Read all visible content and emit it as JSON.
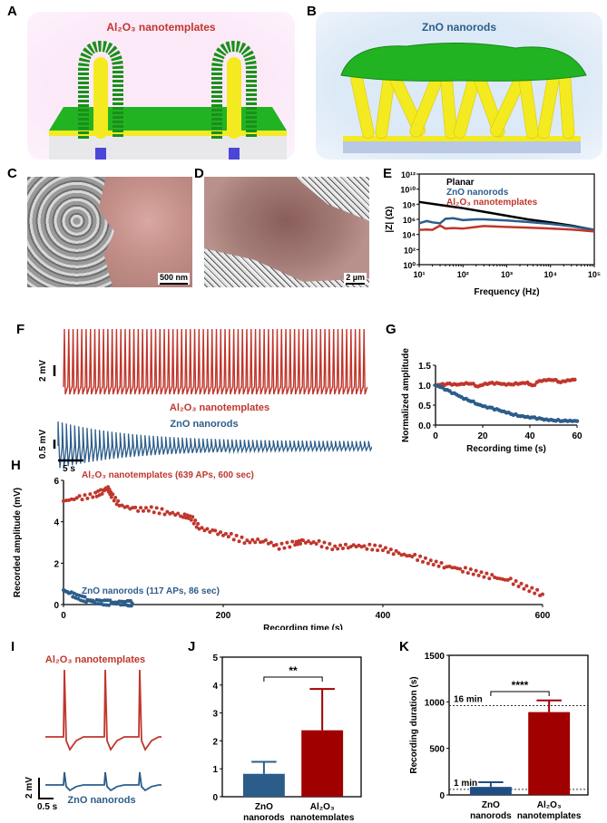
{
  "panels": {
    "A": {
      "letter": "A",
      "title": "Al₂O₃ nanotemplates"
    },
    "B": {
      "letter": "B",
      "title": "ZnO nanorods"
    },
    "C": {
      "letter": "C",
      "scale": "500 nm"
    },
    "D": {
      "letter": "D",
      "scale": "2 µm"
    },
    "E": {
      "letter": "E"
    },
    "F": {
      "letter": "F",
      "top_label": "Al₂O₃ nanotemplates",
      "bottom_label": "ZnO nanorods",
      "top_scale": "2 mV",
      "bottom_scale": "0.5 mV",
      "time_scale": "5 s"
    },
    "G": {
      "letter": "G"
    },
    "H": {
      "letter": "H"
    },
    "I": {
      "letter": "I",
      "top_label": "Al₂O₃ nanotemplates",
      "bottom_label": "ZnO nanorods",
      "v_scale": "2 mV",
      "t_scale": "0.5 s"
    },
    "J": {
      "letter": "J"
    },
    "K": {
      "letter": "K"
    }
  },
  "colors": {
    "red": "#c0362c",
    "blue": "#2c5d8a",
    "black": "#000000",
    "darkred": "#a00000",
    "navy": "#1f4e84"
  },
  "chart_data": [
    {
      "id": "E",
      "type": "line",
      "xscale": "log",
      "yscale": "log",
      "xlabel": "Frequency (Hz)",
      "ylabel": "|Z| (Ω)",
      "xlim": [
        10,
        100000
      ],
      "ylim": [
        1,
        1000000000000
      ],
      "xticks": [
        "10¹",
        "10²",
        "10³",
        "10⁴",
        "10⁵"
      ],
      "yticks": [
        "10⁰",
        "10²",
        "10⁴",
        "10⁶",
        "10⁸",
        "10¹⁰",
        "10¹²"
      ],
      "legend": [
        "Planar",
        "ZnO nanorods",
        "Al₂O₃ nanotemplates"
      ],
      "legend_position": "top-left",
      "series": [
        {
          "name": "Planar",
          "color": "#000000",
          "x": [
            10,
            30,
            100,
            300,
            1000,
            3000,
            10000,
            30000,
            100000
          ],
          "y": [
            200000000,
            80000000,
            30000000,
            10000000,
            3000000,
            1000000,
            400000,
            150000,
            40000
          ]
        },
        {
          "name": "ZnO nanorods",
          "color": "#2c5d8a",
          "x": [
            10,
            15,
            20,
            30,
            40,
            60,
            100,
            200,
            300,
            1000,
            3000,
            10000,
            30000,
            100000
          ],
          "y": [
            300000,
            600000,
            400000,
            300000,
            1200000,
            1400000,
            800000,
            1000000,
            1000000,
            700000,
            450000,
            250000,
            120000,
            40000
          ]
        },
        {
          "name": "Al₂O₃ nanotemplates",
          "color": "#c0362c",
          "x": [
            10,
            15,
            20,
            30,
            40,
            60,
            100,
            200,
            300,
            1000,
            3000,
            10000,
            30000,
            100000
          ],
          "y": [
            40000,
            45000,
            40000,
            150000,
            60000,
            70000,
            60000,
            100000,
            130000,
            100000,
            80000,
            60000,
            45000,
            25000
          ]
        }
      ]
    },
    {
      "id": "G",
      "type": "scatter",
      "xlabel": "Recording time (s)",
      "ylabel": "Normalized amplitude",
      "xlim": [
        0,
        60
      ],
      "ylim": [
        0,
        1.5
      ],
      "xticks": [
        "0",
        "20",
        "40",
        "60"
      ],
      "yticks": [
        "0.0",
        "0.5",
        "1.0",
        "1.5"
      ],
      "series": [
        {
          "name": "Al₂O₃ nanotemplates",
          "color": "#c0362c",
          "x": [
            0,
            3,
            6,
            9,
            12,
            15,
            18,
            21,
            24,
            27,
            30,
            33,
            36,
            39,
            41,
            44,
            47,
            50,
            53,
            56,
            59
          ],
          "y": [
            1.0,
            1.02,
            1.03,
            1.01,
            1.04,
            1.05,
            0.97,
            1.03,
            1.05,
            1.04,
            1.02,
            1.03,
            1.05,
            1.06,
            0.98,
            1.1,
            1.13,
            1.14,
            1.08,
            1.12,
            1.14
          ]
        },
        {
          "name": "ZnO nanorods",
          "color": "#2c5d8a",
          "x": [
            0,
            3,
            6,
            9,
            12,
            15,
            18,
            21,
            24,
            27,
            30,
            33,
            36,
            39,
            42,
            45,
            48,
            51,
            54,
            57,
            60
          ],
          "y": [
            1.0,
            0.93,
            0.84,
            0.76,
            0.67,
            0.61,
            0.52,
            0.46,
            0.42,
            0.37,
            0.32,
            0.27,
            0.23,
            0.2,
            0.18,
            0.15,
            0.13,
            0.12,
            0.11,
            0.105,
            0.1
          ]
        }
      ]
    },
    {
      "id": "H",
      "type": "scatter",
      "xlabel": "Recording time (s)",
      "ylabel": "Recorded amplitude (mV)",
      "xlim": [
        0,
        600
      ],
      "ylim": [
        0,
        6
      ],
      "xticks": [
        "0",
        "200",
        "400",
        "600"
      ],
      "yticks": [
        "0",
        "2",
        "4",
        "6"
      ],
      "annotations": [
        "Al₂O₃ nanotemplates (639 APs, 600 sec)",
        "ZnO nanorods (117 APs,  86 sec)"
      ],
      "series": [
        {
          "name": "Al₂O₃ nanotemplates",
          "color": "#c0362c",
          "x": [
            0,
            20,
            40,
            50,
            55,
            60,
            70,
            90,
            110,
            130,
            150,
            160,
            170,
            190,
            210,
            230,
            250,
            270,
            290,
            300,
            320,
            340,
            360,
            380,
            400,
            420,
            440,
            460,
            480,
            500,
            520,
            540,
            560,
            580,
            600
          ],
          "y": [
            5.0,
            5.15,
            5.3,
            5.5,
            5.65,
            5.3,
            4.8,
            4.6,
            4.6,
            4.45,
            4.3,
            4.2,
            3.7,
            3.5,
            3.3,
            3.05,
            3.1,
            2.8,
            2.95,
            3.05,
            2.95,
            2.75,
            2.85,
            2.8,
            2.7,
            2.45,
            2.3,
            2.05,
            1.85,
            1.7,
            1.5,
            1.3,
            1.15,
            0.8,
            0.5
          ]
        },
        {
          "name": "ZnO nanorods",
          "color": "#2c5d8a",
          "x": [
            0,
            10,
            20,
            30,
            40,
            50,
            60,
            70,
            80,
            86
          ],
          "y": [
            0.7,
            0.5,
            0.33,
            0.22,
            0.14,
            0.1,
            0.08,
            0.07,
            0.06,
            0.06
          ]
        }
      ]
    },
    {
      "id": "J",
      "type": "bar",
      "ylabel": "Recorded amplitude (mV)",
      "categories": [
        "ZnO\nnanorods",
        "Al₂O₃\nnanotemplates"
      ],
      "values": [
        0.82,
        2.38
      ],
      "errors": [
        0.43,
        1.48
      ],
      "colors": [
        "#2c5d8a",
        "#a00000"
      ],
      "ylim": [
        0,
        5
      ],
      "yticks": [
        "0",
        "1",
        "2",
        "3",
        "4",
        "5"
      ],
      "significance": "**"
    },
    {
      "id": "K",
      "type": "bar",
      "ylabel": "Recording duration (s)",
      "categories": [
        "ZnO\nnanorods",
        "Al₂O₃\nnanotemplates"
      ],
      "values": [
        86,
        890
      ],
      "errors": [
        50,
        125
      ],
      "colors": [
        "#1f4e84",
        "#a00000"
      ],
      "ylim": [
        0,
        1500
      ],
      "yticks": [
        "0",
        "500",
        "1000",
        "1500"
      ],
      "reference_lines": [
        {
          "value": 960,
          "label": "16 min"
        },
        {
          "value": 60,
          "label": "1 min"
        }
      ],
      "significance": "****"
    }
  ]
}
